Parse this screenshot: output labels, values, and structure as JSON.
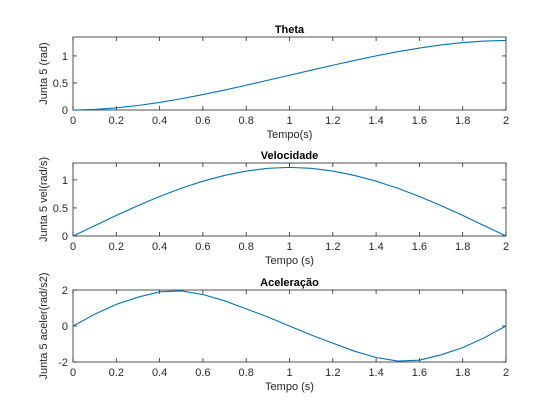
{
  "chart_data": [
    {
      "type": "line",
      "title": "Theta",
      "xlabel": "Tempo(s)",
      "ylabel": "Junta 5  (rad)",
      "xlim": [
        0,
        2
      ],
      "ylim": [
        0,
        1.35
      ],
      "xticks": [
        0,
        0.2,
        0.4,
        0.6,
        0.8,
        1,
        1.2,
        1.4,
        1.6,
        1.8,
        2
      ],
      "xtick_labels": [
        "0",
        "0.2",
        "0.4",
        "0.6",
        "0.8",
        "1",
        "1.2",
        "1.4",
        "1.6",
        "1.8",
        "2"
      ],
      "yticks": [
        0,
        0.5,
        1
      ],
      "ytick_labels": [
        "0",
        "0.5",
        "1"
      ],
      "grid": false,
      "color": "#0072BD",
      "x": [
        0,
        0.1,
        0.2,
        0.3,
        0.4,
        0.5,
        0.6,
        0.7,
        0.8,
        0.9,
        1.0,
        1.1,
        1.2,
        1.3,
        1.4,
        1.5,
        1.6,
        1.7,
        1.8,
        1.9,
        2.0
      ],
      "y": [
        0,
        0.011,
        0.039,
        0.083,
        0.14,
        0.208,
        0.285,
        0.369,
        0.458,
        0.55,
        0.643,
        0.736,
        0.828,
        0.917,
        1.001,
        1.078,
        1.146,
        1.203,
        1.247,
        1.275,
        1.286
      ]
    },
    {
      "type": "line",
      "title": "Velocidade",
      "xlabel": "Tempo (s)",
      "ylabel": "Junta 5  vel(rad/s)",
      "xlim": [
        0,
        2
      ],
      "ylim": [
        0,
        1.3
      ],
      "xticks": [
        0,
        0.2,
        0.4,
        0.6,
        0.8,
        1,
        1.2,
        1.4,
        1.6,
        1.8,
        2
      ],
      "xtick_labels": [
        "0",
        "0.2",
        "0.4",
        "0.6",
        "0.8",
        "1",
        "1.2",
        "1.4",
        "1.6",
        "1.8",
        "2"
      ],
      "yticks": [
        0,
        0.5,
        1
      ],
      "ytick_labels": [
        "0",
        "0.5",
        "1"
      ],
      "grid": false,
      "color": "#0072BD",
      "x": [
        0,
        0.1,
        0.2,
        0.3,
        0.4,
        0.5,
        0.6,
        0.7,
        0.8,
        0.9,
        1.0,
        1.1,
        1.2,
        1.3,
        1.4,
        1.5,
        1.6,
        1.7,
        1.8,
        1.9,
        2.0
      ],
      "y": [
        0,
        0.183,
        0.367,
        0.54,
        0.703,
        0.85,
        0.976,
        1.079,
        1.157,
        1.205,
        1.222,
        1.205,
        1.157,
        1.079,
        0.976,
        0.85,
        0.703,
        0.54,
        0.367,
        0.183,
        0
      ]
    },
    {
      "type": "line",
      "title": "Aceleração",
      "xlabel": "Tempo (s)",
      "ylabel": "Junta 5  aceler(rad/s2)",
      "xlim": [
        0,
        2
      ],
      "ylim": [
        -2,
        2
      ],
      "xticks": [
        0,
        0.2,
        0.4,
        0.6,
        0.8,
        1,
        1.2,
        1.4,
        1.6,
        1.8,
        2
      ],
      "xtick_labels": [
        "0",
        "0.2",
        "0.4",
        "0.6",
        "0.8",
        "1",
        "1.2",
        "1.4",
        "1.6",
        "1.8",
        "2"
      ],
      "yticks": [
        -2,
        0,
        2
      ],
      "ytick_labels": [
        "-2",
        "0",
        "2"
      ],
      "grid": false,
      "color": "#0072BD",
      "x": [
        0,
        0.1,
        0.2,
        0.3,
        0.4,
        0.5,
        0.6,
        0.7,
        0.8,
        0.9,
        1.0,
        1.1,
        1.2,
        1.3,
        1.4,
        1.5,
        1.6,
        1.7,
        1.8,
        1.9,
        2.0
      ],
      "y": [
        0,
        0.65,
        1.2,
        1.6,
        1.9,
        1.95,
        1.75,
        1.4,
        0.95,
        0.5,
        0,
        -0.5,
        -0.95,
        -1.4,
        -1.75,
        -1.95,
        -1.9,
        -1.6,
        -1.2,
        -0.65,
        0
      ]
    }
  ]
}
